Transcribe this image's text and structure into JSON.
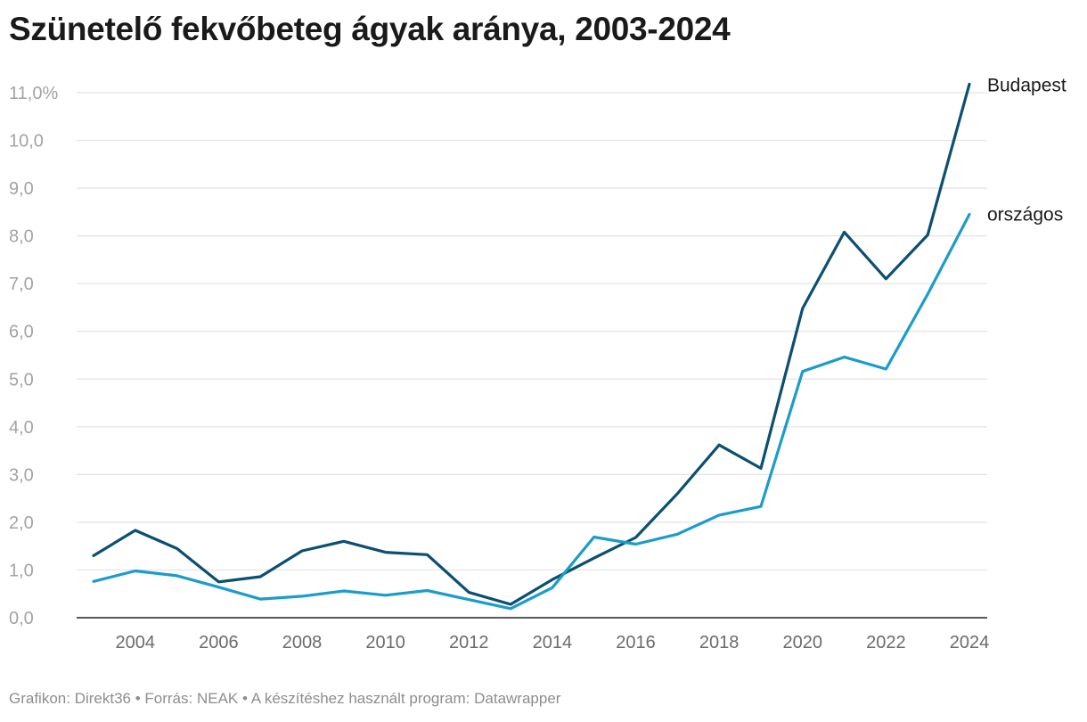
{
  "chart_data": {
    "type": "line",
    "title": "Szünetelő fekvőbeteg ágyak aránya, 2003-2024",
    "x": [
      2003,
      2004,
      2005,
      2006,
      2007,
      2008,
      2009,
      2010,
      2011,
      2012,
      2013,
      2014,
      2015,
      2016,
      2017,
      2018,
      2019,
      2020,
      2021,
      2022,
      2023,
      2024
    ],
    "x_ticks": [
      {
        "value": 2004,
        "label": "2004"
      },
      {
        "value": 2006,
        "label": "2006"
      },
      {
        "value": 2008,
        "label": "2008"
      },
      {
        "value": 2010,
        "label": "2010"
      },
      {
        "value": 2012,
        "label": "2012"
      },
      {
        "value": 2014,
        "label": "2014"
      },
      {
        "value": 2016,
        "label": "2016"
      },
      {
        "value": 2018,
        "label": "2018"
      },
      {
        "value": 2020,
        "label": "2020"
      },
      {
        "value": 2022,
        "label": "2022"
      },
      {
        "value": 2024,
        "label": "2024"
      }
    ],
    "y_ticks": [
      {
        "value": 0,
        "label": "0,0"
      },
      {
        "value": 1,
        "label": "1,0"
      },
      {
        "value": 2,
        "label": "2,0"
      },
      {
        "value": 3,
        "label": "3,0"
      },
      {
        "value": 4,
        "label": "4,0"
      },
      {
        "value": 5,
        "label": "5,0"
      },
      {
        "value": 6,
        "label": "6,0"
      },
      {
        "value": 7,
        "label": "7,0"
      },
      {
        "value": 8,
        "label": "8,0"
      },
      {
        "value": 9,
        "label": "9,0"
      },
      {
        "value": 10,
        "label": "10,0"
      },
      {
        "value": 11,
        "label": "11,0%"
      }
    ],
    "xlim": [
      2003,
      2024
    ],
    "ylim": [
      0,
      11
    ],
    "grid": true,
    "legend": "direct labels at line ends",
    "series": [
      {
        "name": "Budapest",
        "color": "#0b4f71",
        "values": [
          1.3,
          1.83,
          1.45,
          0.75,
          0.86,
          1.4,
          1.6,
          1.37,
          1.32,
          0.53,
          0.28,
          0.8,
          1.25,
          1.68,
          2.6,
          3.62,
          3.13,
          6.48,
          8.08,
          7.1,
          8.02,
          11.18
        ]
      },
      {
        "name": "országos",
        "color": "#1b9ccb",
        "values": [
          0.76,
          0.98,
          0.88,
          0.64,
          0.39,
          0.45,
          0.56,
          0.47,
          0.57,
          0.38,
          0.19,
          0.63,
          1.69,
          1.54,
          1.75,
          2.15,
          2.33,
          5.16,
          5.46,
          5.21,
          6.78,
          8.45
        ]
      }
    ]
  },
  "footer": {
    "text": "Grafikon: Direkt36 • Forrás: NEAK • A készítéshez használt program: Datawrapper"
  }
}
